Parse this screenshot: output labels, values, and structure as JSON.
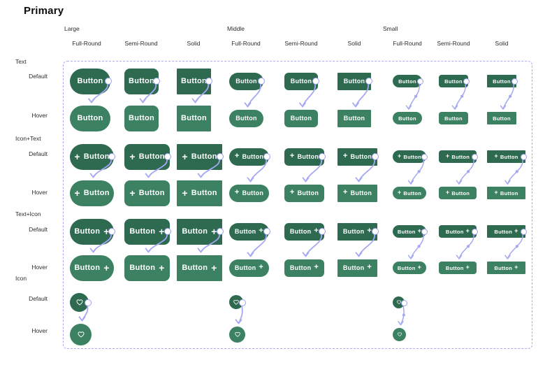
{
  "page": {
    "title": "Primary"
  },
  "legend": {
    "button_label": "Button",
    "plus_glyph": "+"
  },
  "colors": {
    "button_default": "#2D6A4F",
    "button_hover": "#3C8162",
    "button_text": "#FFFFFF",
    "arrow": "#A6A8F3",
    "connector_ring": "#9DA0F0",
    "frame_border": "#A9ABF5",
    "label_text": "#2C2C2C",
    "title_text": "#0D0D0D"
  },
  "grid": {
    "size_groups": [
      {
        "label": "Large",
        "variants": [
          "Full-Round",
          "Semi-Round",
          "Solid"
        ]
      },
      {
        "label": "Middle",
        "variants": [
          "Full-Round",
          "Semi-Round",
          "Solid"
        ]
      },
      {
        "label": "Small",
        "variants": [
          "Full-Round",
          "Semi-Round",
          "Solid"
        ]
      }
    ],
    "row_groups": [
      {
        "label": "Text",
        "states": [
          "Default",
          "Hover"
        ]
      },
      {
        "label": "Icon+Text",
        "states": [
          "Default",
          "Hover"
        ]
      },
      {
        "label": "Text+Icon",
        "states": [
          "Default",
          "Hover"
        ]
      },
      {
        "label": "Icon",
        "states": [
          "Default",
          "Hover"
        ]
      }
    ]
  }
}
